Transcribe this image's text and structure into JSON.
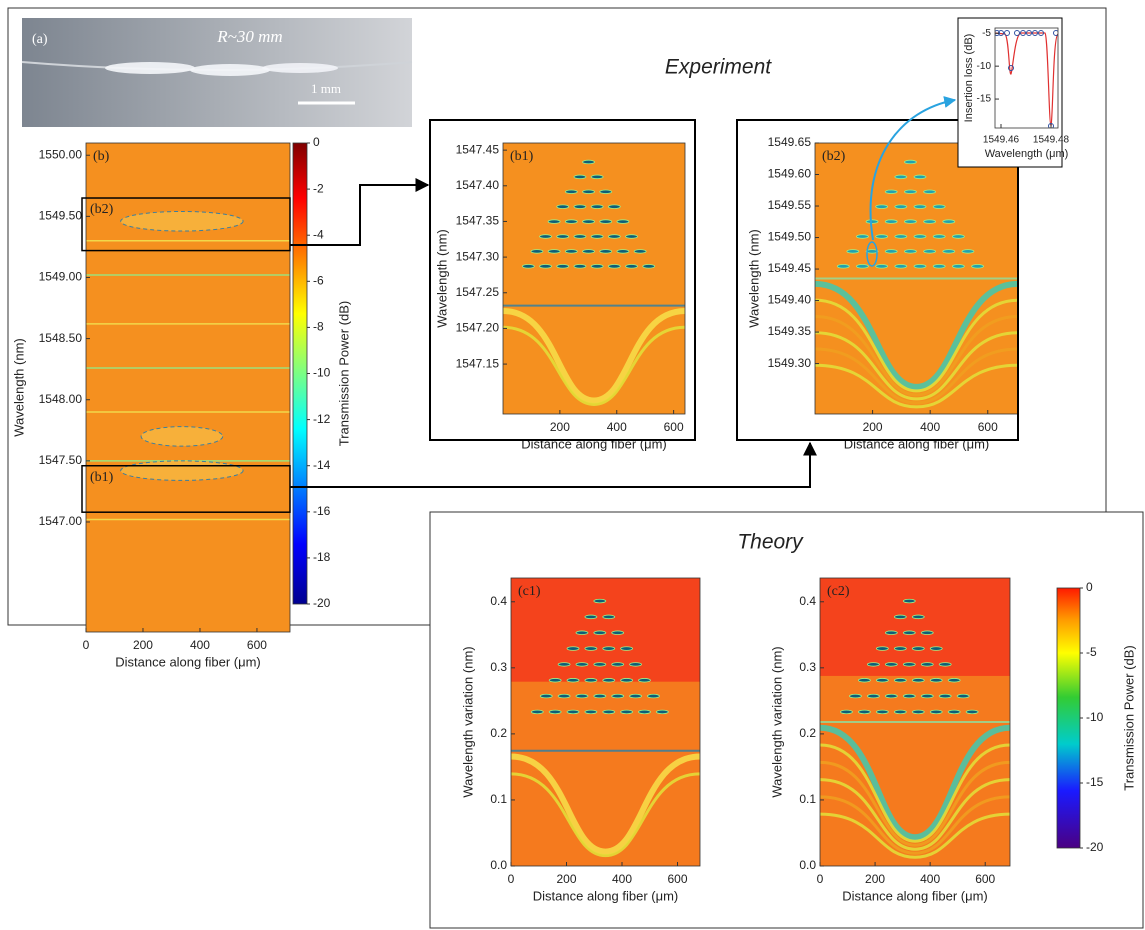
{
  "figure": {
    "experiment_title": "Experiment",
    "theory_title": "Theory",
    "photo": {
      "label": "(a)",
      "radius": "R~30 mm",
      "scale_bar": "1 mm"
    },
    "panels": [
      {
        "label": "(b)",
        "xlabel": "Distance along fiber (μm)",
        "ylabel": "Wavelength (nm)",
        "xlim": [
          0,
          716
        ],
        "ylim": [
          1546.1,
          1550.1
        ],
        "xticks": [
          0,
          200,
          400,
          600
        ],
        "yticks": [
          {
            "value": 1547,
            "label": "1547.00"
          },
          {
            "value": 1547.5,
            "label": "1547.50"
          },
          {
            "value": 1548,
            "label": "1548.00"
          },
          {
            "value": 1548.5,
            "label": "1548.50"
          },
          {
            "value": 1549,
            "label": "1549.00"
          },
          {
            "value": 1549.5,
            "label": "1549.50"
          },
          {
            "value": 1550,
            "label": "1550.00"
          }
        ],
        "regions": [
          "(b1)",
          "(b2)"
        ]
      },
      {
        "label": "(b1)",
        "xlabel": "Distance along fiber (μm)",
        "ylabel": "Wavelength (nm)",
        "xlim": [
          0,
          640
        ],
        "ylim": [
          1547.08,
          1547.46
        ],
        "xticks": [
          200,
          400,
          600
        ],
        "yticks": [
          1547.15,
          {
            "value": 1547.2,
            "label": "1547.20"
          },
          1547.25,
          {
            "value": 1547.3,
            "label": "1547.30"
          },
          1547.35,
          {
            "value": 1547.4,
            "label": "1547.40"
          },
          1547.45
        ]
      },
      {
        "label": "(b2)",
        "xlabel": "Distance along fiber (μm)",
        "ylabel": "Wavelength (nm)",
        "xlim": [
          0,
          705
        ],
        "ylim": [
          1549.22,
          1549.65
        ],
        "xticks": [
          200,
          400,
          600
        ],
        "yticks": [
          {
            "value": 1549.3,
            "label": "1549.30"
          },
          1549.35,
          {
            "value": 1549.4,
            "label": "1549.40"
          },
          1549.45,
          {
            "value": 1549.5,
            "label": "1549.50"
          },
          1549.55,
          {
            "value": 1549.6,
            "label": "1549.60"
          },
          1549.65
        ]
      },
      {
        "label": "(c1)",
        "xlabel": "Distance along fiber (μm)",
        "ylabel": "Wavelength variation (nm)",
        "xlim": [
          0,
          681
        ],
        "ylim": [
          0,
          0.436
        ],
        "xticks": [
          0,
          200,
          400,
          600
        ],
        "yticks": [
          {
            "value": 0,
            "label": "0.0"
          },
          0.1,
          0.2,
          0.3,
          0.4
        ]
      },
      {
        "label": "(c2)",
        "xlabel": "Distance along fiber (μm)",
        "ylabel": "Wavelength variation (nm)",
        "xlim": [
          0,
          690
        ],
        "ylim": [
          0,
          0.436
        ],
        "xticks": [
          0,
          200,
          400,
          600
        ],
        "yticks": [
          {
            "value": 0,
            "label": "0.0"
          },
          0.1,
          0.2,
          0.3,
          0.4
        ]
      },
      {
        "xlabel": "Wavelength (μm)",
        "ylabel": "Insertion loss (dB)",
        "xlim": [
          1549.4576,
          1549.4828
        ],
        "ylim": [
          -19.4,
          -4.2
        ],
        "xticks": [
          1549.46,
          1549.48
        ],
        "yticks": [
          -5,
          -10,
          -15
        ]
      }
    ],
    "colorbars": [
      {
        "label": "Transmission Power (dB)",
        "lim": [
          -20,
          0
        ],
        "ticks": [
          0,
          -2,
          -4,
          -6,
          -8,
          -10,
          -12,
          -14,
          -16,
          -18,
          -20
        ]
      },
      {
        "label": "Transmission Power (dB)",
        "lim": [
          -20,
          0
        ],
        "ticks": [
          0,
          -5,
          -10,
          -15,
          -20
        ]
      }
    ]
  }
}
